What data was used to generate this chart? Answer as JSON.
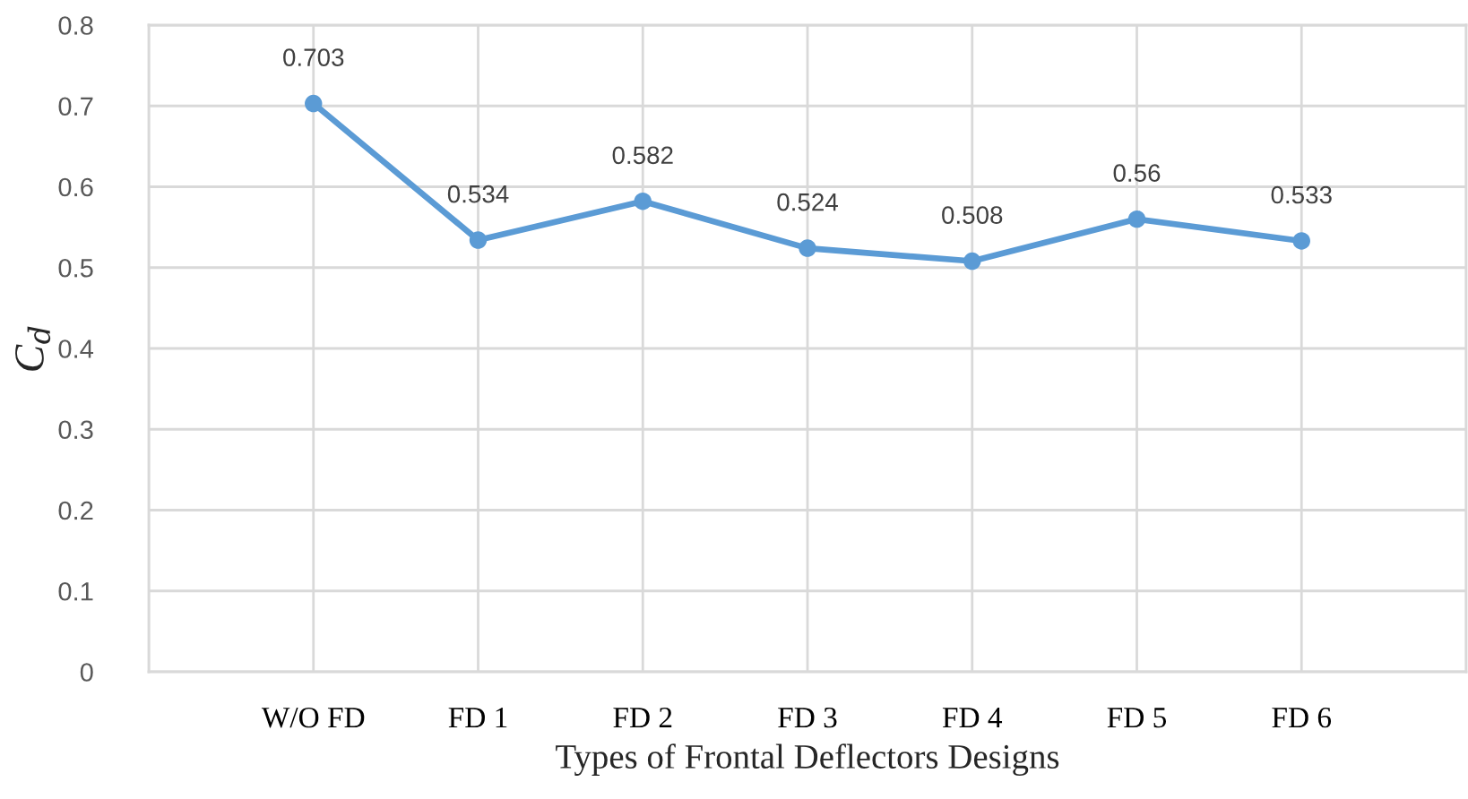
{
  "chart_data": {
    "type": "line",
    "xlabel": "Types of Frontal Deflectors Designs",
    "ylabel": "C$_{d}$",
    "categories": [
      null,
      "W/O FD",
      "FD 1",
      "FD 2",
      "FD 3",
      "FD 4",
      "FD 5",
      "FD 6",
      null
    ],
    "series": [
      {
        "color": "#5b9bd5",
        "values": [
          null,
          0.703,
          0.534,
          0.582,
          0.524,
          0.508,
          0.56,
          0.533,
          null
        ]
      }
    ],
    "ylim": [
      0,
      0.8
    ],
    "yticks": [
      0,
      0.1,
      0.2,
      0.3,
      0.4,
      0.5,
      0.6,
      0.7,
      0.8
    ],
    "grid": true,
    "marker": "circle",
    "line_style": "solid",
    "data_labels": true
  }
}
